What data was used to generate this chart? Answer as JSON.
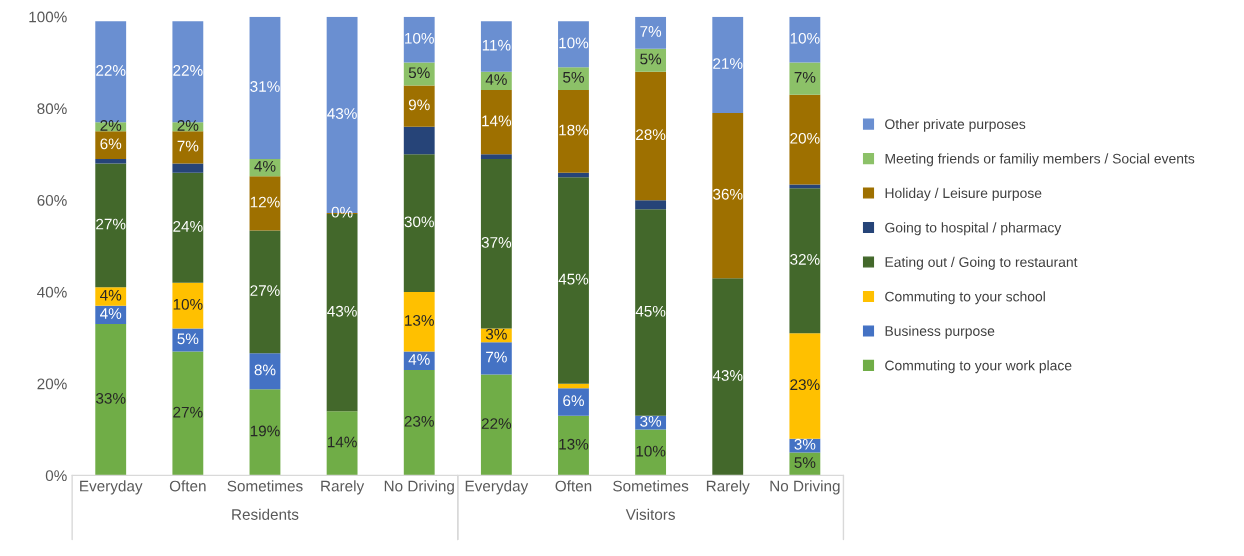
{
  "chart_data": {
    "type": "bar",
    "stacked": true,
    "legend": "right",
    "grid": false,
    "categories": [
      "Everyday",
      "Often",
      "Sometimes",
      "Rarely",
      "No Driving",
      "Everyday",
      "Often",
      "Sometimes",
      "Rarely",
      "No Driving"
    ],
    "annotations": [
      "Residents",
      "Visitors"
    ],
    "ylim": [
      0,
      100
    ],
    "yticks": [
      {
        "value": 0,
        "label": "0%"
      },
      {
        "value": 20,
        "label": "20%"
      },
      {
        "value": 40,
        "label": "40%"
      },
      {
        "value": 60,
        "label": "60%"
      },
      {
        "value": 80,
        "label": "80%"
      },
      {
        "value": 100,
        "label": "100%"
      }
    ],
    "series": [
      {
        "name": "Commuting to your work place",
        "color": "#70ad47",
        "values": [
          33,
          27,
          18.8,
          14,
          23,
          22,
          13,
          10,
          0,
          5
        ],
        "value_labels": [
          "33%",
          "27%",
          "19%",
          "14%",
          "23%",
          "22%",
          "13%",
          "10%",
          null,
          "5%"
        ]
      },
      {
        "name": "Business purpose",
        "color": "#4472c4",
        "values": [
          4,
          5,
          7.8,
          0,
          4,
          7,
          6,
          3,
          0,
          3
        ],
        "value_labels": [
          "4%",
          "5%",
          "8%",
          null,
          "4%",
          "7%",
          "6%",
          "3%",
          null,
          "3%"
        ]
      },
      {
        "name": "Commuting to your school",
        "color": "#ffc000",
        "values": [
          4,
          10,
          0,
          0,
          13,
          3,
          1,
          0,
          0,
          23
        ],
        "value_labels": [
          "4%",
          "10%",
          null,
          null,
          "13%",
          "3%",
          null,
          null,
          null,
          "23%"
        ]
      },
      {
        "name": "Eating out / Going to restaurant",
        "color": "#43682b",
        "values": [
          27,
          24,
          26.8,
          43,
          30,
          37,
          45,
          45,
          43,
          31.6
        ],
        "value_labels": [
          "27%",
          "24%",
          "27%",
          "43%",
          "30%",
          "37%",
          "45%",
          "45%",
          "43%",
          "32%"
        ]
      },
      {
        "name": "Going to hospital / pharmacy",
        "color": "#264478",
        "values": [
          1,
          2,
          0,
          0,
          6,
          1,
          1,
          2,
          0,
          0.8
        ],
        "value_labels": [
          null,
          null,
          null,
          null,
          null,
          null,
          null,
          null,
          null,
          null
        ]
      },
      {
        "name": "Holiday / Leisure purpose",
        "color": "#9e7000",
        "values": [
          6,
          7,
          11.8,
          0.2,
          9,
          14,
          18,
          28,
          36,
          19.6
        ],
        "value_labels": [
          "6%",
          "7%",
          "12%",
          "0%",
          "9%",
          "14%",
          "18%",
          "28%",
          "36%",
          "20%"
        ]
      },
      {
        "name": "Meeting friends or familiy members / Social events",
        "color": "#8cc168",
        "values": [
          2,
          2,
          3.8,
          0,
          5,
          4,
          5,
          5,
          0,
          7
        ],
        "value_labels": [
          "2%",
          "2%",
          "4%",
          null,
          "5%",
          "4%",
          "5%",
          "5%",
          null,
          "7%"
        ]
      },
      {
        "name": "Other private purposes",
        "color": "#6a8fd1",
        "values": [
          22,
          22,
          31,
          42.8,
          10,
          11,
          10,
          7,
          21,
          10
        ],
        "value_labels": [
          "22%",
          "22%",
          "31%",
          "43%",
          "10%",
          "11%",
          "10%",
          "7%",
          "21%",
          "10%"
        ]
      }
    ]
  }
}
